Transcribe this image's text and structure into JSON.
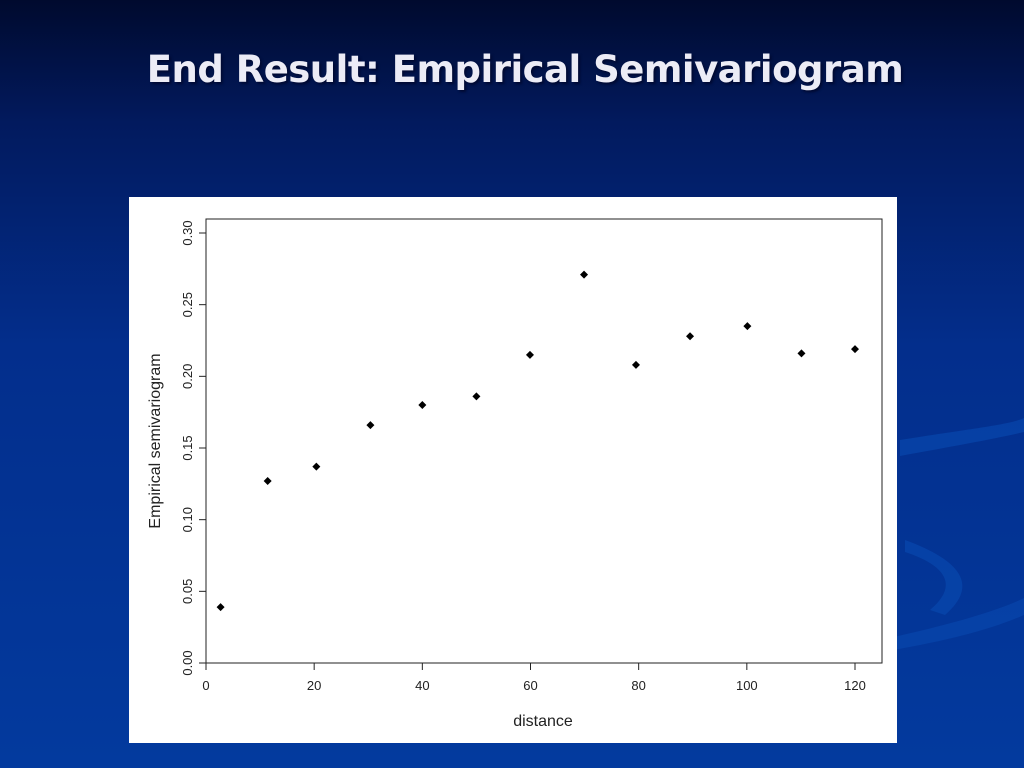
{
  "slide": {
    "title": "End Result: Empirical Semivariogram"
  },
  "colors": {
    "background_top": "#000a2e",
    "background_bottom": "#033a9e",
    "title_text": "#ececf6",
    "panel": "#ffffff",
    "points": "#000000"
  },
  "chart_data": {
    "type": "scatter",
    "title": "",
    "xlabel": "distance",
    "ylabel": "Empirical semivariogram",
    "xlim": [
      0,
      124
    ],
    "ylim": [
      0,
      0.31
    ],
    "xticks": [
      0,
      20,
      40,
      60,
      80,
      100,
      120
    ],
    "xtick_labels": [
      "0",
      "20",
      "40",
      "60",
      "80",
      "100",
      "120"
    ],
    "yticks": [
      0,
      0.05,
      0.1,
      0.15,
      0.2,
      0.25,
      0.3
    ],
    "ytick_labels": [
      "0.00",
      "0.05",
      "0.10",
      "0.15",
      "0.20",
      "0.25",
      "0.30"
    ],
    "grid": false,
    "marker": "diamond",
    "x": [
      2.7,
      11.4,
      20.4,
      30.4,
      40.0,
      50.0,
      59.9,
      69.9,
      79.5,
      89.5,
      100.1,
      110.1,
      120.0
    ],
    "y": [
      0.039,
      0.127,
      0.137,
      0.166,
      0.18,
      0.186,
      0.215,
      0.271,
      0.208,
      0.228,
      0.235,
      0.216,
      0.219
    ]
  }
}
